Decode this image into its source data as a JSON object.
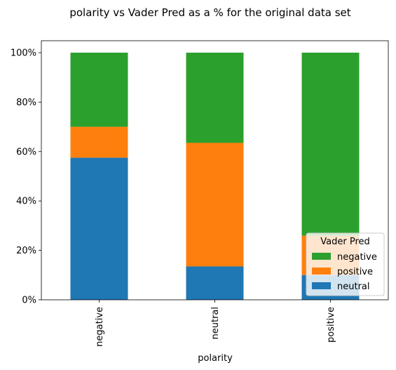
{
  "chart_data": {
    "type": "bar",
    "stacked": true,
    "title": "polarity vs Vader Pred as a % for the original data set",
    "xlabel": "polarity",
    "ylabel": "",
    "categories": [
      "negative",
      "neutral",
      "positive"
    ],
    "ylim": [
      0,
      100
    ],
    "yticks": [
      0,
      20,
      40,
      60,
      80,
      100
    ],
    "ytick_labels": [
      "0%",
      "20%",
      "40%",
      "60%",
      "80%",
      "100%"
    ],
    "grid": false,
    "legend": {
      "title": "Vader Pred",
      "placement": "lower-right",
      "entries": [
        "negative",
        "positive",
        "neutral"
      ]
    },
    "series": [
      {
        "name": "neutral",
        "color": "#1f77b4",
        "values": [
          57.5,
          13.5,
          10.0
        ]
      },
      {
        "name": "positive",
        "color": "#ff7f0e",
        "values": [
          12.5,
          50.0,
          16.0
        ]
      },
      {
        "name": "negative",
        "color": "#2ca02c",
        "values": [
          30.0,
          36.5,
          74.0
        ]
      }
    ]
  }
}
